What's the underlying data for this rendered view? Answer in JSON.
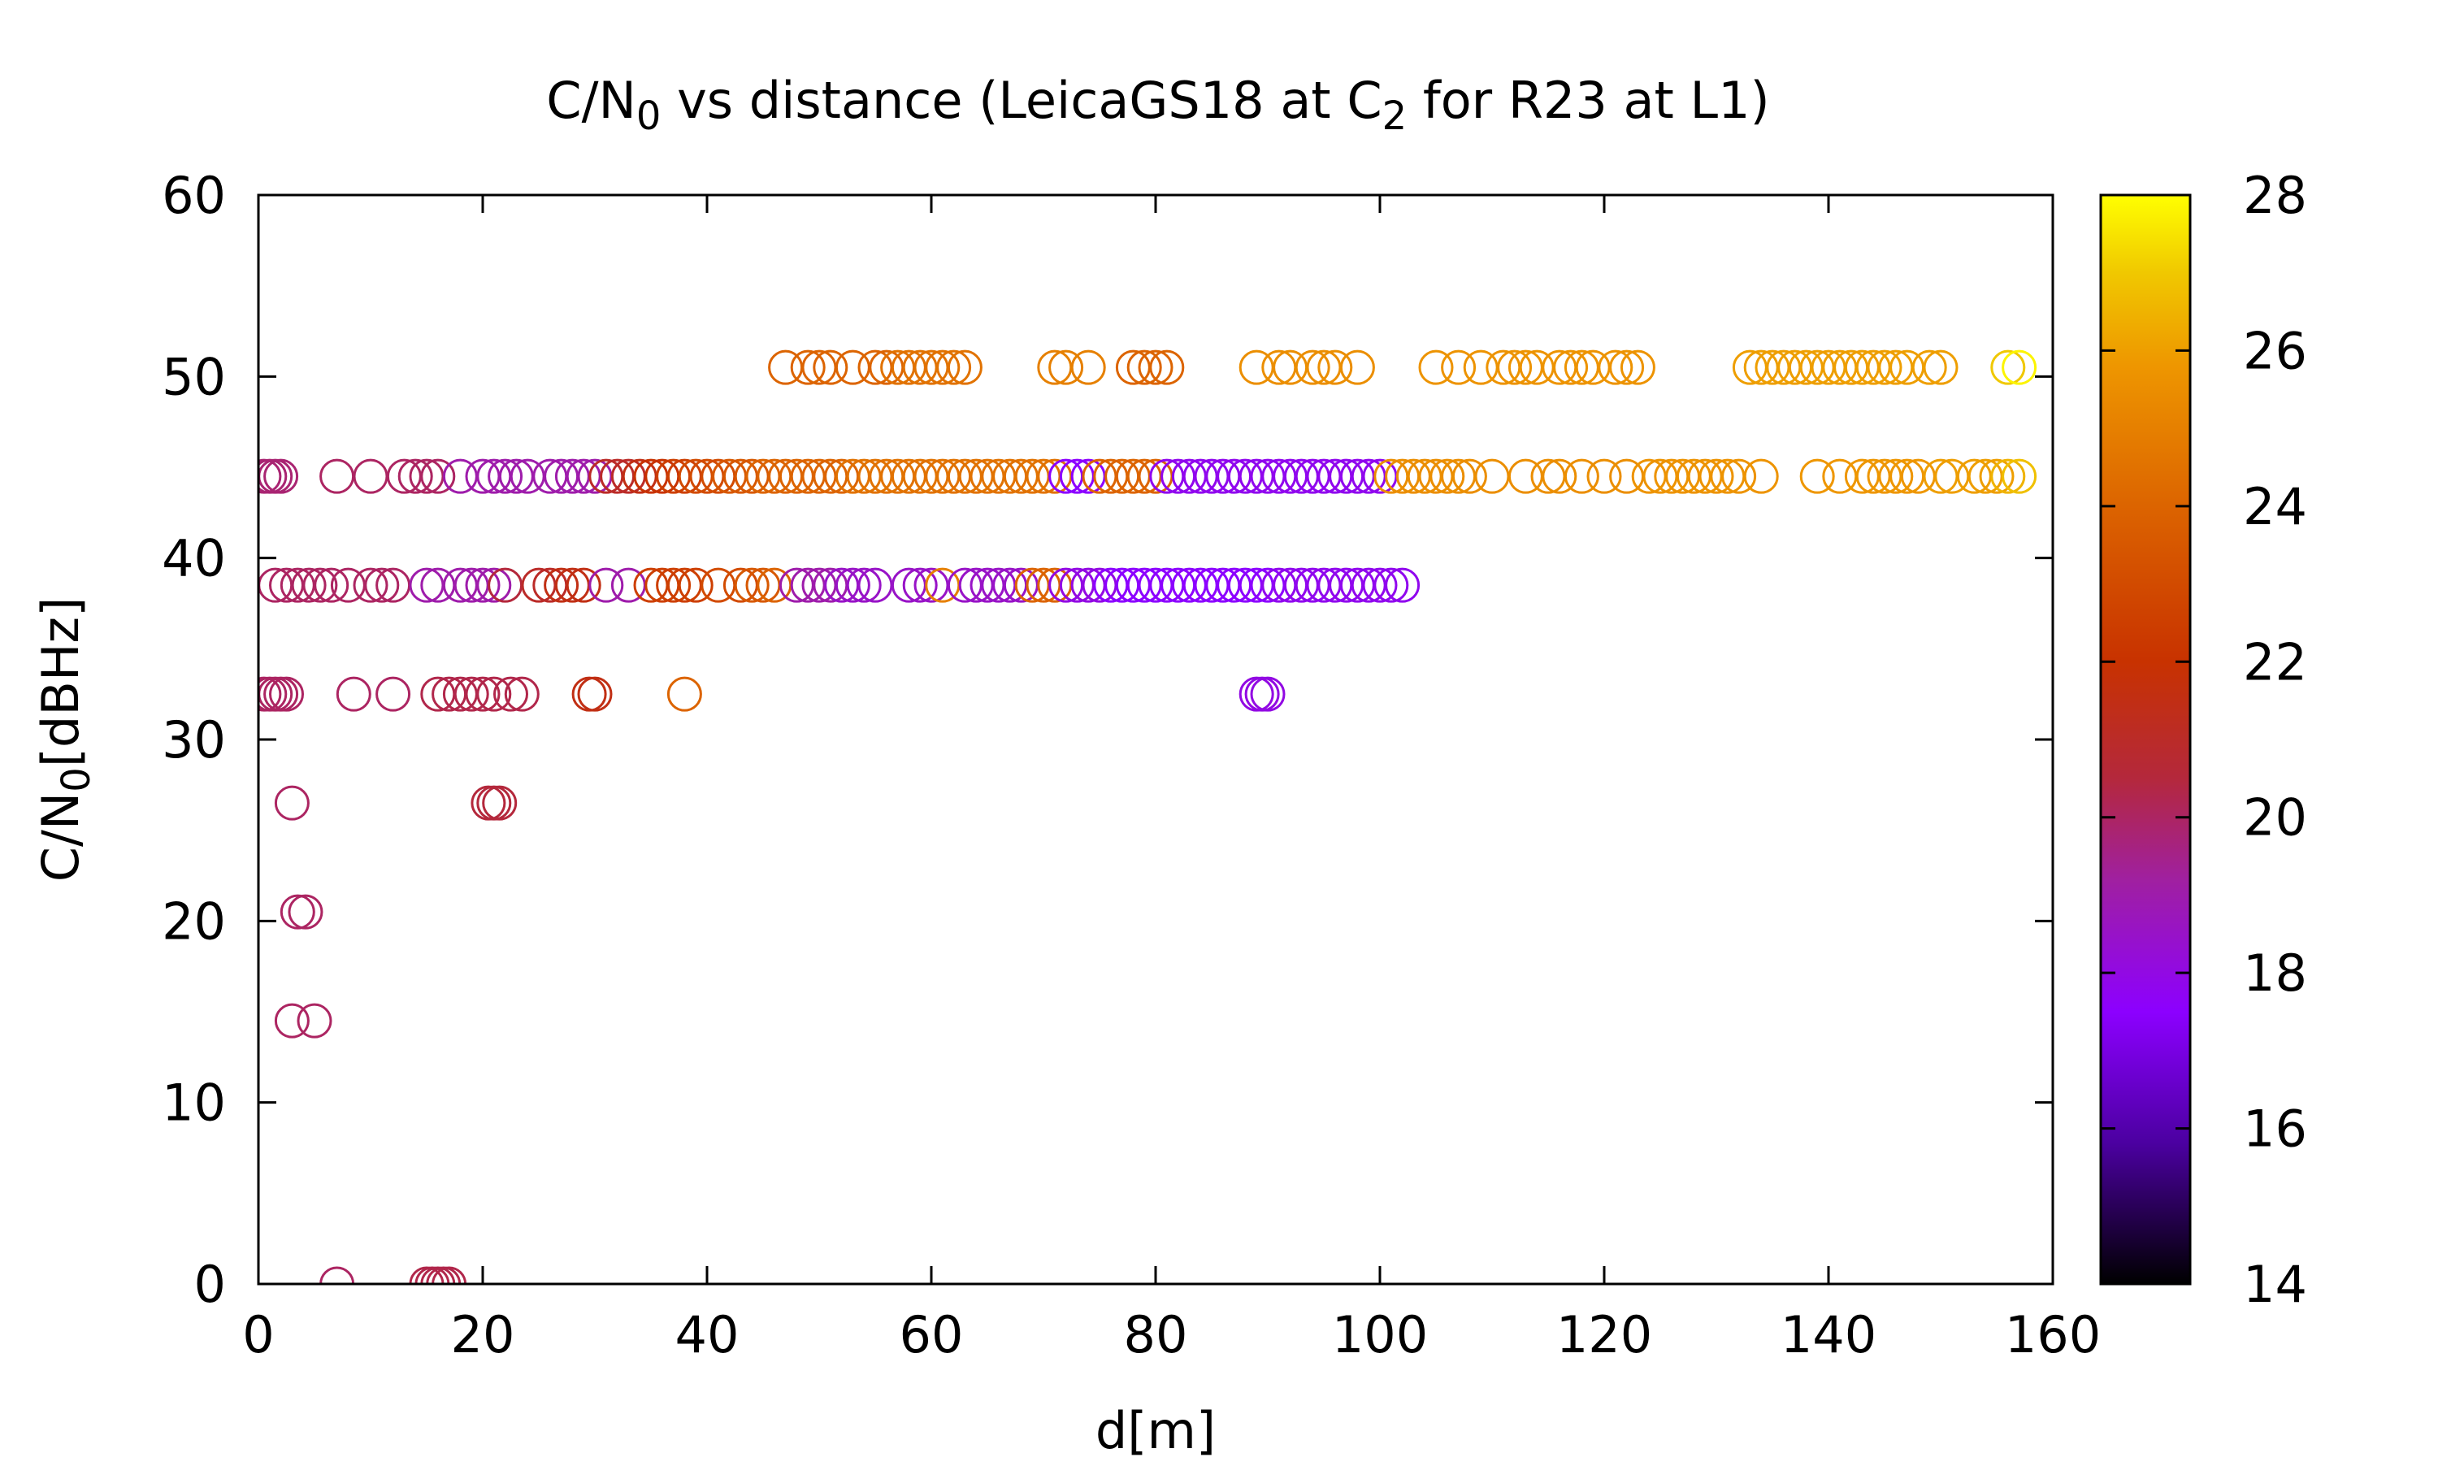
{
  "chart_data": {
    "type": "scatter",
    "title": {
      "main": "C/N",
      "sub0": "0",
      "mid": " vs distance (LeicaGS18 at C",
      "sub2": "2",
      "tail": " for R23 at L1)"
    },
    "xlabel": "d[m]",
    "ylabel": {
      "main": "C/N",
      "sub": "0",
      "tail": "[dBHz]"
    },
    "xlim": [
      0,
      160
    ],
    "ylim": [
      0,
      60
    ],
    "xticks": [
      0,
      20,
      40,
      60,
      80,
      100,
      120,
      140,
      160
    ],
    "yticks": [
      0,
      10,
      20,
      30,
      40,
      50,
      60
    ],
    "colorbar": {
      "range": [
        14,
        28
      ],
      "ticks": [
        14,
        16,
        18,
        20,
        22,
        24,
        26,
        28
      ],
      "palette": [
        "#000000",
        "#4b00a0",
        "#8c00ff",
        "#a020a0",
        "#b4283c",
        "#c83200",
        "#dc6400",
        "#ee9600",
        "#f0c800",
        "#ffff00"
      ],
      "palette_stops": [
        14,
        15.8,
        17.5,
        19.2,
        20.5,
        22,
        24,
        25.8,
        27,
        28
      ]
    },
    "marker": "open-circle",
    "grid": false,
    "series": [
      {
        "y": 50.5,
        "points": [
          [
            47,
            24
          ],
          [
            49,
            24
          ],
          [
            50,
            24
          ],
          [
            51,
            24
          ],
          [
            53,
            24
          ],
          [
            55,
            24
          ],
          [
            56,
            24
          ],
          [
            57,
            24.5
          ],
          [
            58,
            24.5
          ],
          [
            59,
            24.5
          ],
          [
            60,
            24.5
          ],
          [
            61,
            24.5
          ],
          [
            62,
            24.5
          ],
          [
            63,
            24.5
          ],
          [
            71,
            25
          ],
          [
            72,
            25
          ],
          [
            74,
            25
          ],
          [
            78,
            24
          ],
          [
            79,
            24
          ],
          [
            80,
            24
          ],
          [
            81,
            24
          ],
          [
            89,
            25.5
          ],
          [
            91,
            25.5
          ],
          [
            92,
            25.5
          ],
          [
            94,
            25.5
          ],
          [
            95,
            25.5
          ],
          [
            96,
            25.5
          ],
          [
            98,
            25.5
          ],
          [
            105,
            25.7
          ],
          [
            107,
            25.7
          ],
          [
            109,
            25.7
          ],
          [
            111,
            25.7
          ],
          [
            112,
            25.7
          ],
          [
            113,
            25.7
          ],
          [
            114,
            25.7
          ],
          [
            116,
            25.7
          ],
          [
            117,
            25.7
          ],
          [
            118,
            25.7
          ],
          [
            119,
            25.7
          ],
          [
            121,
            25.7
          ],
          [
            122,
            25.7
          ],
          [
            123,
            25.7
          ],
          [
            133,
            26
          ],
          [
            134,
            26
          ],
          [
            135,
            26
          ],
          [
            136,
            26
          ],
          [
            137,
            26
          ],
          [
            138,
            26
          ],
          [
            139,
            26
          ],
          [
            140,
            26
          ],
          [
            141,
            26
          ],
          [
            142,
            26
          ],
          [
            143,
            26
          ],
          [
            144,
            26
          ],
          [
            145,
            26
          ],
          [
            146,
            26
          ],
          [
            147,
            26
          ],
          [
            149,
            26
          ],
          [
            150,
            26
          ],
          [
            156,
            27
          ],
          [
            157,
            27.8
          ]
        ]
      },
      {
        "y": 44.5,
        "points": [
          [
            0.5,
            19.8
          ],
          [
            1,
            19.8
          ],
          [
            1.5,
            19.8
          ],
          [
            2,
            19.8
          ],
          [
            7,
            20
          ],
          [
            10,
            20
          ],
          [
            13,
            20
          ],
          [
            14,
            20
          ],
          [
            15,
            20
          ],
          [
            16,
            20
          ],
          [
            18,
            19
          ],
          [
            20,
            19
          ],
          [
            21,
            19
          ],
          [
            22,
            19
          ],
          [
            23,
            19
          ],
          [
            24,
            19
          ],
          [
            26,
            19
          ],
          [
            27,
            19
          ],
          [
            28,
            19
          ],
          [
            29,
            19
          ],
          [
            30,
            19
          ],
          [
            31,
            21
          ],
          [
            32,
            21
          ],
          [
            33,
            21
          ],
          [
            34,
            21.5
          ],
          [
            35,
            22
          ],
          [
            36,
            22
          ],
          [
            37,
            22.5
          ],
          [
            38,
            22.5
          ],
          [
            39,
            23
          ],
          [
            40,
            23
          ],
          [
            41,
            23
          ],
          [
            42,
            23.5
          ],
          [
            43,
            23.5
          ],
          [
            44,
            23.5
          ],
          [
            45,
            24
          ],
          [
            46,
            24
          ],
          [
            47,
            24
          ],
          [
            48,
            24
          ],
          [
            49,
            24
          ],
          [
            50,
            24
          ],
          [
            51,
            24
          ],
          [
            52,
            24
          ],
          [
            53,
            24.5
          ],
          [
            54,
            24.5
          ],
          [
            55,
            24.5
          ],
          [
            56,
            24.5
          ],
          [
            57,
            24.5
          ],
          [
            58,
            24.5
          ],
          [
            59,
            24.5
          ],
          [
            60,
            24.5
          ],
          [
            61,
            24.5
          ],
          [
            62,
            24.5
          ],
          [
            63,
            24.5
          ],
          [
            64,
            24.5
          ],
          [
            65,
            24.5
          ],
          [
            66,
            24.5
          ],
          [
            67,
            24.5
          ],
          [
            68,
            24.5
          ],
          [
            69,
            24.5
          ],
          [
            70,
            24.5
          ],
          [
            71,
            24.5
          ],
          [
            72,
            17.5
          ],
          [
            73,
            17.5
          ],
          [
            74,
            17.5
          ],
          [
            75,
            24
          ],
          [
            76,
            24
          ],
          [
            77,
            24
          ],
          [
            78,
            24
          ],
          [
            79,
            24
          ],
          [
            80,
            24
          ],
          [
            81,
            17.8
          ],
          [
            82,
            17.8
          ],
          [
            83,
            17.8
          ],
          [
            84,
            17.8
          ],
          [
            85,
            17.8
          ],
          [
            86,
            17.8
          ],
          [
            87,
            17.8
          ],
          [
            88,
            17.8
          ],
          [
            89,
            17.8
          ],
          [
            90,
            17.8
          ],
          [
            91,
            17.8
          ],
          [
            92,
            17.8
          ],
          [
            93,
            17.8
          ],
          [
            94,
            17.8
          ],
          [
            95,
            17.8
          ],
          [
            96,
            17.8
          ],
          [
            97,
            17.8
          ],
          [
            98,
            17.8
          ],
          [
            99,
            17.8
          ],
          [
            100,
            17.8
          ],
          [
            101,
            25.5
          ],
          [
            102,
            25.5
          ],
          [
            103,
            25.5
          ],
          [
            104,
            25.5
          ],
          [
            105,
            25.5
          ],
          [
            106,
            25.5
          ],
          [
            107,
            25.5
          ],
          [
            108,
            25.5
          ],
          [
            110,
            25.5
          ],
          [
            113,
            25.5
          ],
          [
            115,
            25.5
          ],
          [
            116,
            25.5
          ],
          [
            118,
            25.5
          ],
          [
            120,
            25.5
          ],
          [
            122,
            25.5
          ],
          [
            124,
            25.7
          ],
          [
            125,
            25.7
          ],
          [
            126,
            25.7
          ],
          [
            127,
            25.7
          ],
          [
            128,
            25.7
          ],
          [
            129,
            25.7
          ],
          [
            130,
            25.7
          ],
          [
            131,
            25.7
          ],
          [
            132,
            25.7
          ],
          [
            134,
            25.7
          ],
          [
            139,
            25.8
          ],
          [
            141,
            25.8
          ],
          [
            143,
            25.8
          ],
          [
            144,
            25.8
          ],
          [
            145,
            25.8
          ],
          [
            146,
            25.8
          ],
          [
            147,
            25.8
          ],
          [
            148,
            25.8
          ],
          [
            150,
            26
          ],
          [
            151,
            26
          ],
          [
            153,
            26
          ],
          [
            154,
            26
          ],
          [
            155,
            26
          ],
          [
            156,
            26.5
          ],
          [
            157,
            26.8
          ]
        ]
      },
      {
        "y": 38.5,
        "points": [
          [
            1.5,
            20
          ],
          [
            2.5,
            20
          ],
          [
            3.5,
            20
          ],
          [
            4.5,
            20
          ],
          [
            5.5,
            20
          ],
          [
            6.5,
            20
          ],
          [
            8,
            20
          ],
          [
            10,
            20
          ],
          [
            11,
            20
          ],
          [
            12,
            20
          ],
          [
            15,
            19
          ],
          [
            16,
            19
          ],
          [
            18,
            19
          ],
          [
            19,
            19
          ],
          [
            20,
            19
          ],
          [
            21,
            19
          ],
          [
            22,
            20.5
          ],
          [
            25,
            21
          ],
          [
            26,
            21
          ],
          [
            27,
            21.5
          ],
          [
            28,
            21.5
          ],
          [
            29,
            21.5
          ],
          [
            31,
            19
          ],
          [
            33,
            19
          ],
          [
            35,
            22.5
          ],
          [
            36,
            22.5
          ],
          [
            37,
            22.5
          ],
          [
            38,
            22.5
          ],
          [
            39,
            22.5
          ],
          [
            41,
            23
          ],
          [
            43,
            23
          ],
          [
            44,
            23.5
          ],
          [
            45,
            23.5
          ],
          [
            46,
            24
          ],
          [
            48,
            19
          ],
          [
            49,
            19
          ],
          [
            50,
            19
          ],
          [
            51,
            19
          ],
          [
            52,
            18.5
          ],
          [
            53,
            18.5
          ],
          [
            54,
            18.5
          ],
          [
            55,
            18.5
          ],
          [
            58,
            18.5
          ],
          [
            59,
            18.5
          ],
          [
            60,
            18.5
          ],
          [
            61,
            25
          ],
          [
            63,
            18.5
          ],
          [
            64,
            18.5
          ],
          [
            65,
            18.5
          ],
          [
            66,
            18.5
          ],
          [
            67,
            18.5
          ],
          [
            68,
            18.5
          ],
          [
            69,
            24
          ],
          [
            70,
            24
          ],
          [
            71,
            24
          ],
          [
            72,
            18
          ],
          [
            73,
            18
          ],
          [
            74,
            18
          ],
          [
            75,
            18
          ],
          [
            76,
            17.5
          ],
          [
            77,
            17.5
          ],
          [
            78,
            17.5
          ],
          [
            79,
            17.5
          ],
          [
            80,
            17.5
          ],
          [
            81,
            17.5
          ],
          [
            82,
            17.5
          ],
          [
            83,
            17.5
          ],
          [
            84,
            17.5
          ],
          [
            85,
            17.5
          ],
          [
            86,
            17.5
          ],
          [
            87,
            17.5
          ],
          [
            88,
            17.5
          ],
          [
            89,
            17.5
          ],
          [
            90,
            17.5
          ],
          [
            91,
            17.8
          ],
          [
            92,
            17.8
          ],
          [
            93,
            17.8
          ],
          [
            94,
            17.8
          ],
          [
            95,
            17.8
          ],
          [
            96,
            17.8
          ],
          [
            97,
            17.8
          ],
          [
            98,
            17.8
          ],
          [
            99,
            17.8
          ],
          [
            100,
            17.8
          ],
          [
            101,
            17.8
          ],
          [
            102,
            17.8
          ]
        ]
      },
      {
        "y": 32.5,
        "points": [
          [
            0.5,
            20
          ],
          [
            1,
            20
          ],
          [
            1.5,
            20
          ],
          [
            2,
            20
          ],
          [
            2.5,
            20
          ],
          [
            8.5,
            20
          ],
          [
            12,
            20
          ],
          [
            16,
            20.3
          ],
          [
            17,
            20.3
          ],
          [
            18,
            20.3
          ],
          [
            19,
            20.3
          ],
          [
            20,
            20.3
          ],
          [
            21,
            20.3
          ],
          [
            22.5,
            20.3
          ],
          [
            23.5,
            20.3
          ],
          [
            29.5,
            21.5
          ],
          [
            30,
            21.5
          ],
          [
            38,
            24
          ],
          [
            89,
            18
          ],
          [
            89.5,
            18
          ],
          [
            90,
            18
          ]
        ]
      },
      {
        "y": 26.5,
        "points": [
          [
            3,
            20
          ],
          [
            20.5,
            20.5
          ],
          [
            21,
            20.5
          ],
          [
            21.5,
            20.5
          ]
        ]
      },
      {
        "y": 20.5,
        "points": [
          [
            3.5,
            20
          ],
          [
            4.2,
            20
          ]
        ]
      },
      {
        "y": 14.5,
        "points": [
          [
            3,
            20
          ],
          [
            5,
            20
          ]
        ]
      },
      {
        "y": 0,
        "points": [
          [
            7,
            20
          ],
          [
            15,
            20.3
          ],
          [
            15.5,
            20.3
          ],
          [
            16,
            20.3
          ],
          [
            16.5,
            20.3
          ],
          [
            17,
            20.3
          ]
        ]
      }
    ]
  }
}
